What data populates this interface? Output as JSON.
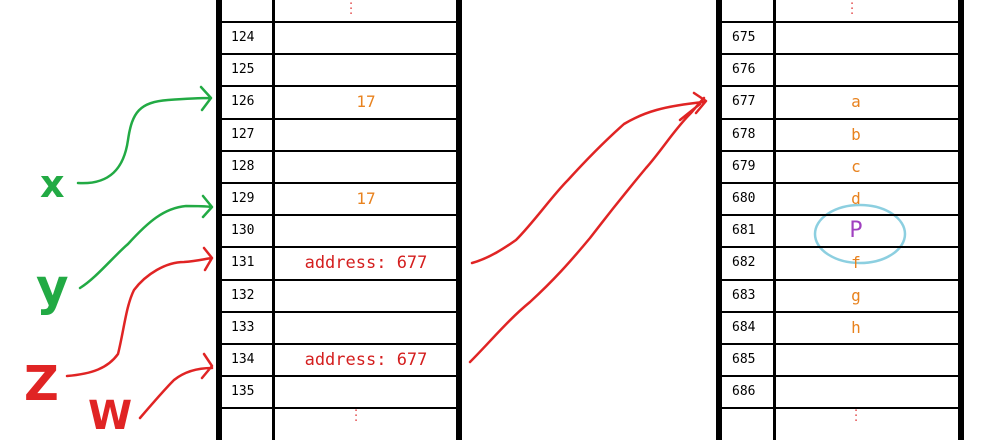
{
  "left_memory": {
    "rows": [
      {
        "address": "124",
        "value": ""
      },
      {
        "address": "125",
        "value": ""
      },
      {
        "address": "126",
        "value": "17"
      },
      {
        "address": "127",
        "value": ""
      },
      {
        "address": "128",
        "value": ""
      },
      {
        "address": "129",
        "value": "17"
      },
      {
        "address": "130",
        "value": ""
      },
      {
        "address": "131",
        "value": "address: 677"
      },
      {
        "address": "132",
        "value": ""
      },
      {
        "address": "133",
        "value": ""
      },
      {
        "address": "134",
        "value": "address: 677"
      },
      {
        "address": "135",
        "value": ""
      }
    ]
  },
  "right_memory": {
    "rows": [
      {
        "address": "675",
        "value": ""
      },
      {
        "address": "676",
        "value": ""
      },
      {
        "address": "677",
        "value": "a"
      },
      {
        "address": "678",
        "value": "b"
      },
      {
        "address": "679",
        "value": "c"
      },
      {
        "address": "680",
        "value": "d"
      },
      {
        "address": "681",
        "value": "P"
      },
      {
        "address": "682",
        "value": "f"
      },
      {
        "address": "683",
        "value": "g"
      },
      {
        "address": "684",
        "value": "h"
      },
      {
        "address": "685",
        "value": ""
      },
      {
        "address": "686",
        "value": ""
      }
    ]
  },
  "variables": [
    {
      "name": "x",
      "color": "#22aa44"
    },
    {
      "name": "y",
      "color": "#22aa44"
    },
    {
      "name": "Z",
      "color": "#e02424"
    },
    {
      "name": "W",
      "color": "#e02424"
    }
  ],
  "colors": {
    "value_orange": "#e8821e",
    "address_red": "#d41e1e",
    "highlight_purple": "#a040c0",
    "circle_blue": "#8ccfe0",
    "arrow_green": "#22aa44",
    "arrow_red": "#e02424",
    "dots_red": "#e04040"
  }
}
